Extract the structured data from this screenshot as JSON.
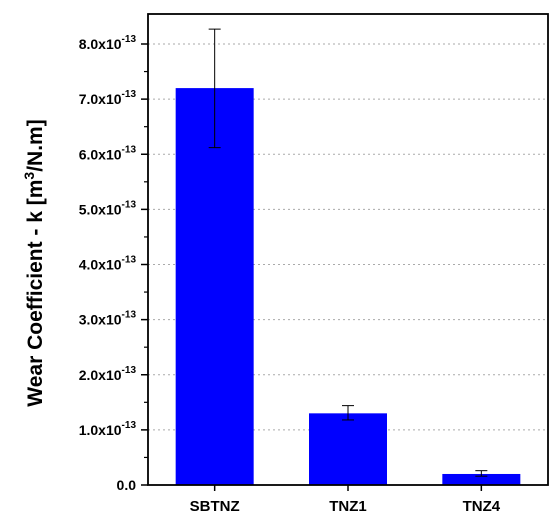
{
  "chart_data": {
    "type": "bar",
    "title": "",
    "xlabel": "",
    "ylabel": "Wear Coefficient - k [m3/N.m]",
    "ylabel_parts": {
      "prefix": "Wear Coefficient - k [m",
      "exponent": "3",
      "suffix": "/N.m]"
    },
    "categories": [
      "SBTNZ",
      "TNZ1",
      "TNZ4"
    ],
    "values": [
      7.2e-13,
      1.3e-13,
      2e-14
    ],
    "error_low": [
      6.12e-13,
      1.18e-13,
      1.6e-14
    ],
    "error_high": [
      8.27e-13,
      1.44e-13,
      2.6e-14
    ],
    "ylim": [
      0,
      8e-13
    ],
    "yticks": [
      {
        "value": 0,
        "mantissa": "0.0",
        "exponent": ""
      },
      {
        "value": 1e-13,
        "mantissa": "1.0x10",
        "exponent": "-13"
      },
      {
        "value": 2e-13,
        "mantissa": "2.0x10",
        "exponent": "-13"
      },
      {
        "value": 3e-13,
        "mantissa": "3.0x10",
        "exponent": "-13"
      },
      {
        "value": 4e-13,
        "mantissa": "4.0x10",
        "exponent": "-13"
      },
      {
        "value": 5e-13,
        "mantissa": "5.0x10",
        "exponent": "-13"
      },
      {
        "value": 6e-13,
        "mantissa": "6.0x10",
        "exponent": "-13"
      },
      {
        "value": 7e-13,
        "mantissa": "7.0x10",
        "exponent": "-13"
      },
      {
        "value": 8e-13,
        "mantissa": "8.0x10",
        "exponent": "-13"
      }
    ],
    "grid": true,
    "bar_color": "#0000ff",
    "grid_color": "#aaaaaa"
  }
}
